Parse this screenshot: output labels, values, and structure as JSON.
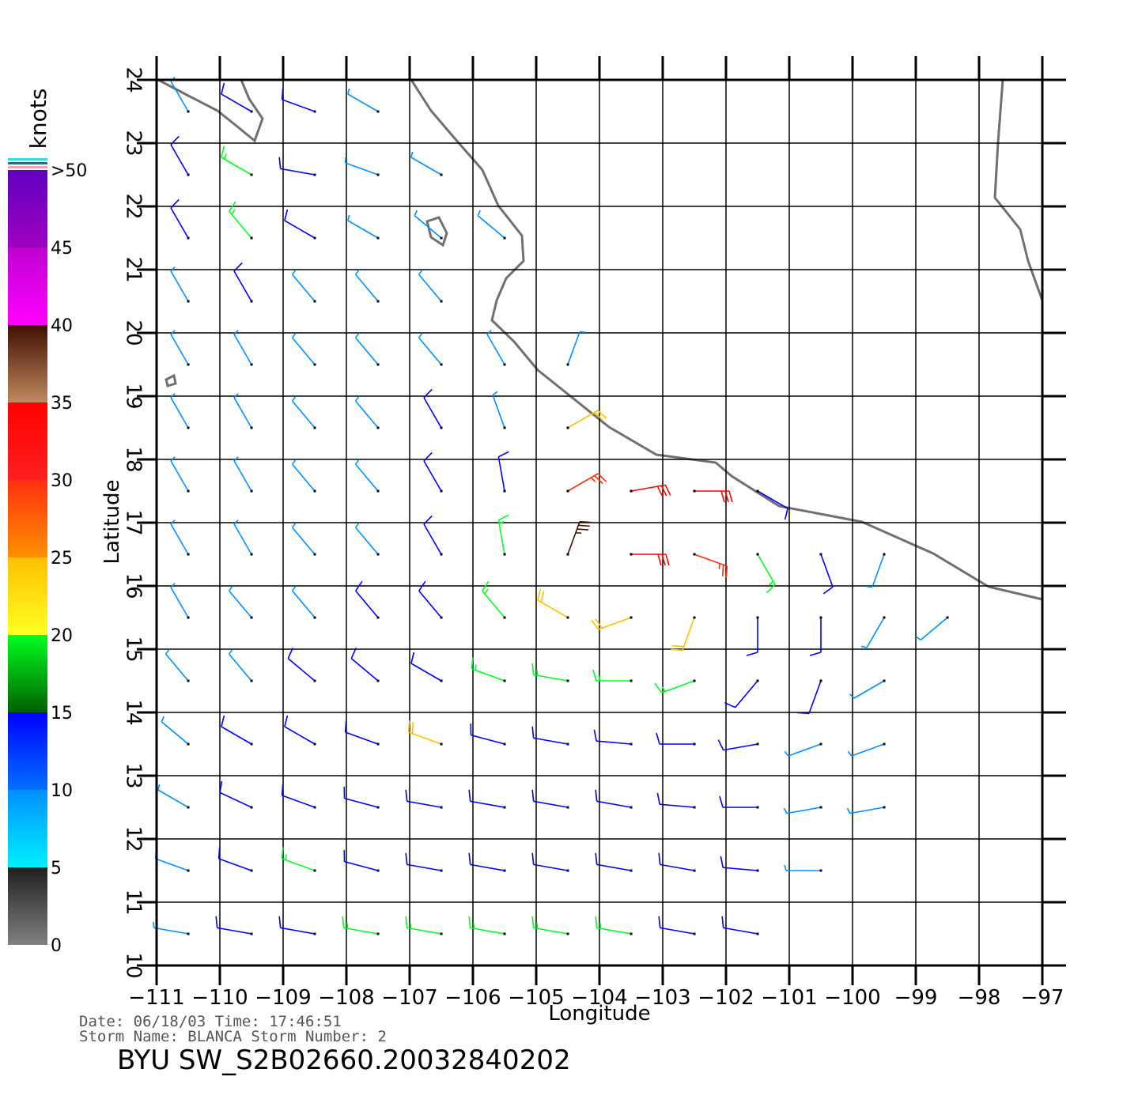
{
  "map": {
    "title": "BYU  SW_S2B02660.20032840202",
    "info_line1": "Date: 06/18/03   Time: 17:46:51",
    "info_line2": "Storm Name: BLANCA   Storm Number: 2",
    "xlabel": "Longitude",
    "ylabel": "Latitude",
    "xlim": [
      -111,
      -97
    ],
    "ylim": [
      10,
      24
    ],
    "xticks": [
      {
        "value": -111,
        "label": "−111"
      },
      {
        "value": -110,
        "label": "−110"
      },
      {
        "value": -109,
        "label": "−109"
      },
      {
        "value": -108,
        "label": "−108"
      },
      {
        "value": -107,
        "label": "−107"
      },
      {
        "value": -106,
        "label": "−106"
      },
      {
        "value": -105,
        "label": "−105"
      },
      {
        "value": -104,
        "label": "−104"
      },
      {
        "value": -103,
        "label": "−103"
      },
      {
        "value": -102,
        "label": "−102"
      },
      {
        "value": -101,
        "label": "−101"
      },
      {
        "value": -100,
        "label": "−100"
      },
      {
        "value": -99,
        "label": "−99"
      },
      {
        "value": -98,
        "label": "−98"
      },
      {
        "value": -97,
        "label": "−97"
      }
    ],
    "yticks": [
      10,
      11,
      12,
      13,
      14,
      15,
      16,
      17,
      18,
      19,
      20,
      21,
      22,
      23,
      24
    ],
    "grid": true,
    "colorbar": {
      "label": "knots",
      "lim": [
        0,
        50
      ],
      "ticks": [
        0,
        5,
        10,
        15,
        20,
        25,
        30,
        35,
        40,
        45,
        {
          "value": 50,
          "label": ">50"
        }
      ],
      "segments": [
        {
          "from": 0,
          "to": 5,
          "colors": [
            "#808080",
            "#202020"
          ]
        },
        {
          "from": 5,
          "to": 10,
          "colors": [
            "#00f0ff",
            "#0090ff"
          ]
        },
        {
          "from": 10,
          "to": 15,
          "colors": [
            "#0070ff",
            "#0000ff"
          ]
        },
        {
          "from": 15,
          "to": 20,
          "colors": [
            "#006000",
            "#00ff20"
          ]
        },
        {
          "from": 20,
          "to": 25,
          "colors": [
            "#ffff20",
            "#ffc000"
          ]
        },
        {
          "from": 25,
          "to": 30,
          "colors": [
            "#ff9000",
            "#ff3010"
          ]
        },
        {
          "from": 30,
          "to": 35,
          "colors": [
            "#ff2020",
            "#ff0000"
          ]
        },
        {
          "from": 35,
          "to": 40,
          "colors": [
            "#c08860",
            "#401000"
          ]
        },
        {
          "from": 40,
          "to": 45,
          "colors": [
            "#ff00ff",
            "#c000d0"
          ]
        },
        {
          "from": 45,
          "to": 50,
          "colors": [
            "#a000c0",
            "#6000c0"
          ]
        }
      ]
    },
    "wind": {
      "lons": [
        -110.5,
        -109.5,
        -108.5,
        -107.5,
        -106.5,
        -105.5,
        -104.5,
        -103.5,
        -102.5,
        -101.5,
        -100.5,
        -99.5,
        -98.5,
        -97.5
      ],
      "lats": [
        23.5,
        22.5,
        21.5,
        20.5,
        19.5,
        18.5,
        17.5,
        16.5,
        15.5,
        14.5,
        13.5,
        12.5,
        11.5,
        10.5
      ],
      "speed": [
        [
          9,
          12,
          10,
          8,
          null,
          null,
          null,
          null,
          null,
          null,
          null,
          null,
          null,
          null
        ],
        [
          10,
          16,
          12,
          7,
          6,
          null,
          null,
          null,
          null,
          null,
          null,
          null,
          null,
          null
        ],
        [
          10,
          15,
          12,
          8,
          6,
          6,
          null,
          null,
          null,
          null,
          null,
          null,
          null,
          null
        ],
        [
          9,
          10,
          9,
          8,
          7,
          null,
          null,
          null,
          null,
          null,
          null,
          null,
          null,
          null
        ],
        [
          9,
          9,
          9,
          9,
          8,
          8,
          8,
          null,
          null,
          null,
          null,
          null,
          null,
          null
        ],
        [
          8,
          9,
          9,
          9,
          10,
          9,
          22,
          null,
          null,
          null,
          null,
          null,
          null,
          null
        ],
        [
          8,
          8,
          9,
          9,
          10,
          14,
          25,
          31,
          30,
          12,
          null,
          null,
          null,
          null
        ],
        [
          8,
          8,
          9,
          9,
          10,
          18,
          35,
          32,
          25,
          17,
          12,
          8,
          null,
          null
        ],
        [
          8,
          8,
          9,
          10,
          11,
          16,
          22,
          24,
          20,
          14,
          12,
          7,
          6,
          null
        ],
        [
          9,
          9,
          10,
          11,
          12,
          15,
          17,
          18,
          17,
          13,
          11,
          5,
          null,
          null
        ],
        [
          9,
          10,
          11,
          12,
          20,
          14,
          12,
          13,
          13,
          10,
          7,
          5,
          null,
          null
        ],
        [
          9,
          10,
          11,
          12,
          13,
          13,
          12,
          12,
          14,
          10,
          8,
          6,
          null,
          null
        ],
        [
          9,
          10,
          15,
          14,
          14,
          14,
          13,
          12,
          11,
          10,
          9,
          null,
          null,
          null
        ],
        [
          9,
          10,
          13,
          15,
          16,
          17,
          18,
          16,
          13,
          12,
          null,
          null,
          null,
          null
        ]
      ],
      "direction": [
        [
          330,
          300,
          290,
          300,
          null,
          null,
          null,
          null,
          null,
          null,
          null,
          null,
          null,
          null
        ],
        [
          330,
          300,
          280,
          290,
          300,
          null,
          null,
          null,
          null,
          null,
          null,
          null,
          null,
          null
        ],
        [
          330,
          320,
          300,
          300,
          310,
          310,
          null,
          null,
          null,
          null,
          null,
          null,
          null,
          null
        ],
        [
          330,
          330,
          320,
          320,
          320,
          null,
          null,
          null,
          null,
          null,
          null,
          null,
          null,
          null
        ],
        [
          330,
          330,
          320,
          320,
          320,
          330,
          20,
          null,
          null,
          null,
          null,
          null,
          null,
          null
        ],
        [
          330,
          330,
          320,
          320,
          330,
          340,
          60,
          null,
          null,
          null,
          null,
          null,
          null,
          null
        ],
        [
          330,
          330,
          320,
          320,
          330,
          350,
          60,
          80,
          90,
          120,
          null,
          null,
          null,
          null
        ],
        [
          330,
          330,
          320,
          320,
          330,
          350,
          20,
          90,
          110,
          150,
          160,
          200,
          null,
          null
        ],
        [
          330,
          320,
          320,
          320,
          320,
          320,
          300,
          250,
          200,
          180,
          180,
          210,
          230,
          null
        ],
        [
          320,
          320,
          310,
          310,
          300,
          290,
          280,
          270,
          250,
          220,
          200,
          240,
          null,
          null
        ],
        [
          310,
          300,
          300,
          290,
          290,
          285,
          280,
          275,
          270,
          260,
          250,
          250,
          null,
          null
        ],
        [
          300,
          295,
          290,
          285,
          280,
          280,
          280,
          280,
          275,
          270,
          260,
          260,
          null,
          null
        ],
        [
          290,
          290,
          290,
          285,
          280,
          280,
          280,
          280,
          280,
          275,
          270,
          null,
          null,
          null
        ],
        [
          280,
          280,
          280,
          280,
          280,
          280,
          280,
          280,
          280,
          280,
          null,
          null,
          null,
          null
        ]
      ]
    }
  }
}
